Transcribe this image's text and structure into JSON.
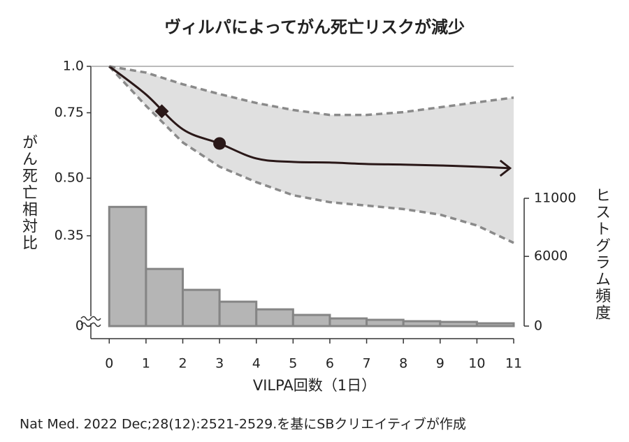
{
  "chart_data": {
    "type": "line",
    "title": "ヴィルパによってがん死亡リスクが減少",
    "x_label": "VILPA回数（1日）",
    "y_label": "がん死亡相対比",
    "y2_label": "ヒストグラム頻度",
    "source": "Nat Med. 2022 Dec;28(12):2521-2529.を基にSBクリエイティブが作成",
    "yscale": "log",
    "xlim": [
      -0.5,
      11
    ],
    "xticks": [
      0,
      1,
      2,
      3,
      4,
      5,
      6,
      7,
      8,
      9,
      10,
      11
    ],
    "ylim": [
      0.2,
      1
    ],
    "yticks": [
      0,
      0.35,
      {
        "value": 0.5,
        "label": "0.50"
      },
      0.75,
      {
        "value": 1,
        "label": "1.0"
      }
    ],
    "y2lim": [
      0,
      11000
    ],
    "y2ticks": [
      0,
      6000,
      11000
    ],
    "line": {
      "color": "#2a1818",
      "x": [
        0,
        1,
        2,
        3,
        4,
        5,
        6,
        7,
        8,
        9,
        10,
        10.9
      ],
      "values": [
        1.0,
        0.84,
        0.677,
        0.62,
        0.565,
        0.553,
        0.551,
        0.546,
        0.544,
        0.541,
        0.537,
        0.532
      ]
    },
    "band": {
      "color": "#e0e0e0",
      "edge_color": "#8a8a8a",
      "x": [
        0,
        1,
        2,
        3,
        4,
        5,
        6,
        7,
        8,
        9,
        10,
        11
      ],
      "upper": [
        1.0,
        0.962,
        0.895,
        0.842,
        0.797,
        0.763,
        0.74,
        0.74,
        0.753,
        0.776,
        0.8,
        0.824
      ],
      "lower": [
        1.0,
        0.783,
        0.624,
        0.537,
        0.488,
        0.45,
        0.431,
        0.422,
        0.413,
        0.399,
        0.373,
        0.335
      ]
    },
    "markers": [
      {
        "x": 1.43,
        "y": 0.757,
        "shape": "diamond"
      },
      {
        "x": 3,
        "y": 0.62,
        "shape": "circle"
      }
    ],
    "histogram": {
      "axis": "y2",
      "color": "#b5b5b5",
      "edge_color": "#858585",
      "bins": [
        0,
        1,
        2,
        3,
        4,
        5,
        6,
        7,
        8,
        9,
        10,
        11
      ],
      "values": [
        10260,
        4920,
        3120,
        2100,
        1440,
        960,
        660,
        540,
        420,
        360,
        240
      ]
    }
  }
}
